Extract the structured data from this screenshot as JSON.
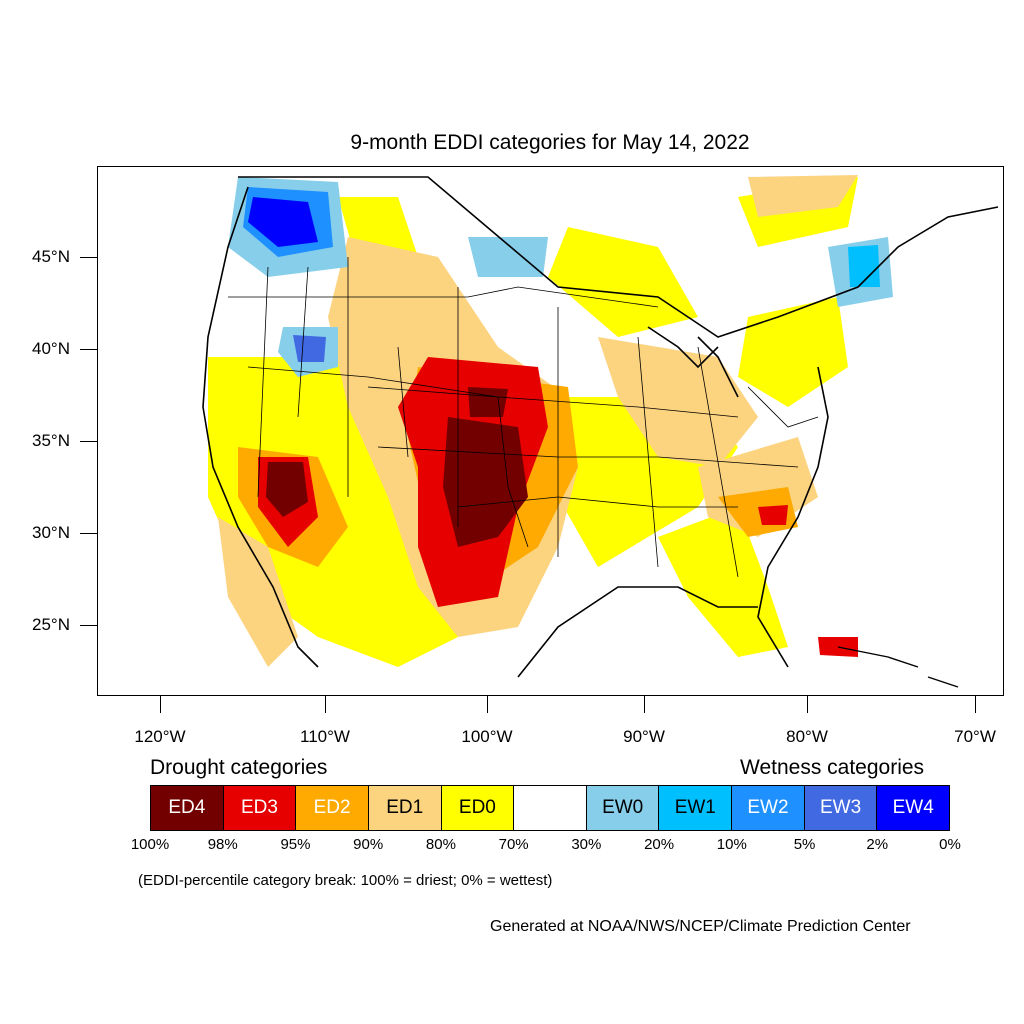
{
  "title": "9-month EDDI categories for May 14, 2022",
  "lat_labels": [
    "45°N",
    "40°N",
    "35°N",
    "30°N",
    "25°N"
  ],
  "lon_labels": [
    "120°W",
    "110°W",
    "100°W",
    "90°W",
    "80°W",
    "70°W"
  ],
  "legend": {
    "drought_title": "Drought categories",
    "wetness_title": "Wetness categories",
    "categories": [
      {
        "label": "ED4",
        "color": "#730000",
        "text_color": "#ffffff"
      },
      {
        "label": "ED3",
        "color": "#e60000",
        "text_color": "#ffffff"
      },
      {
        "label": "ED2",
        "color": "#ffaa00",
        "text_color": "#ffffff"
      },
      {
        "label": "ED1",
        "color": "#fcd37f",
        "text_color": "#000000"
      },
      {
        "label": "ED0",
        "color": "#ffff00",
        "text_color": "#000000"
      },
      {
        "label": "",
        "color": "#ffffff",
        "text_color": "#000000"
      },
      {
        "label": "EW0",
        "color": "#87ceeb",
        "text_color": "#000000"
      },
      {
        "label": "EW1",
        "color": "#00bfff",
        "text_color": "#000000"
      },
      {
        "label": "EW2",
        "color": "#1e90ff",
        "text_color": "#ffffff"
      },
      {
        "label": "EW3",
        "color": "#4169e1",
        "text_color": "#ffffff"
      },
      {
        "label": "EW4",
        "color": "#0000ff",
        "text_color": "#ffffff"
      }
    ],
    "breaks": [
      "100%",
      "98%",
      "95%",
      "90%",
      "80%",
      "70%",
      "30%",
      "20%",
      "10%",
      "5%",
      "2%",
      "0%"
    ]
  },
  "note": "(EDDI-percentile category break: 100% = driest; 0% = wettest)",
  "credit": "Generated at NOAA/NWS/NCEP/Climate Prediction Center"
}
